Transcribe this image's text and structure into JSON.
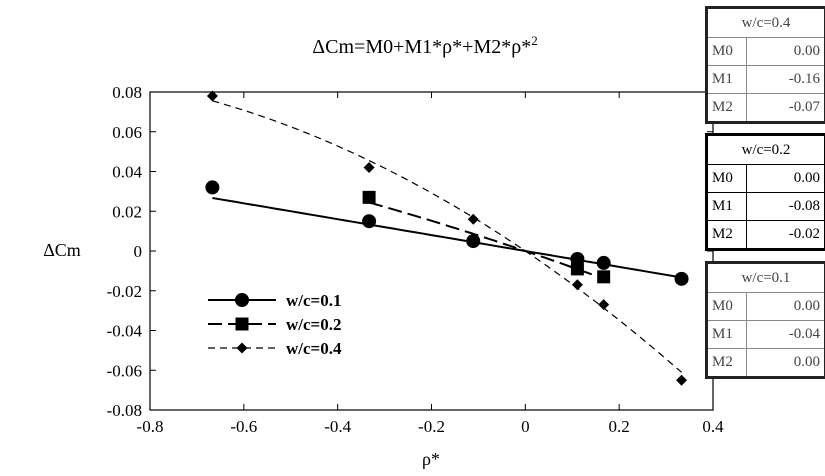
{
  "chart_data": {
    "type": "line",
    "title_parts": {
      "main": "ΔCm=M0+M1*ρ*+M2*ρ*",
      "sup": "2"
    },
    "xlabel": "ρ*",
    "ylabel": "ΔCm",
    "xlim": [
      -0.8,
      0.4
    ],
    "ylim": [
      -0.08,
      0.08
    ],
    "xticks": [
      "-0.8",
      "-0.6",
      "-0.4",
      "-0.2",
      "0",
      "0.2",
      "0.4"
    ],
    "yticks": [
      "0.08",
      "0.06",
      "0.04",
      "0.02",
      "0",
      "-0.02",
      "-0.04",
      "-0.06",
      "-0.08"
    ],
    "grid": false,
    "legend_position": "bottom-left",
    "series": [
      {
        "name": "w/c=0.1",
        "marker": "circle",
        "line": "solid",
        "x": [
          -0.667,
          -0.333,
          -0.111,
          0.111,
          0.167,
          0.333
        ],
        "y": [
          0.032,
          0.015,
          0.005,
          -0.004,
          -0.006,
          -0.014
        ]
      },
      {
        "name": "w/c=0.2",
        "marker": "square",
        "line": "long-dash",
        "x": [
          -0.333,
          0.111,
          0.167
        ],
        "y": [
          0.027,
          -0.009,
          -0.013
        ]
      },
      {
        "name": "w/c=0.4",
        "marker": "diamond",
        "line": "short-dash",
        "x": [
          -0.667,
          -0.333,
          -0.111,
          0.111,
          0.167,
          0.333
        ],
        "y": [
          0.078,
          0.042,
          0.016,
          -0.017,
          -0.027,
          -0.065
        ]
      }
    ],
    "fits": [
      {
        "series": "w/c=0.1",
        "M0": 0.0,
        "M1": -0.04,
        "M2": 0.0
      },
      {
        "series": "w/c=0.2",
        "M0": 0.0,
        "M1": -0.08,
        "M2": -0.02
      },
      {
        "series": "w/c=0.4",
        "M0": 0.0,
        "M1": -0.16,
        "M2": -0.07
      }
    ]
  },
  "tables": {
    "t04": {
      "header": "w/c=0.4",
      "rows": [
        {
          "k": "M0",
          "v": "0.00"
        },
        {
          "k": "M1",
          "v": "-0.16"
        },
        {
          "k": "M2",
          "v": "-0.07"
        }
      ]
    },
    "t02": {
      "header": "w/c=0.2",
      "rows": [
        {
          "k": "M0",
          "v": "0.00"
        },
        {
          "k": "M1",
          "v": "-0.08"
        },
        {
          "k": "M2",
          "v": "-0.02"
        }
      ]
    },
    "t01": {
      "header": "w/c=0.1",
      "rows": [
        {
          "k": "M0",
          "v": "0.00"
        },
        {
          "k": "M1",
          "v": "-0.04"
        },
        {
          "k": "M2",
          "v": "0.00"
        }
      ]
    }
  }
}
